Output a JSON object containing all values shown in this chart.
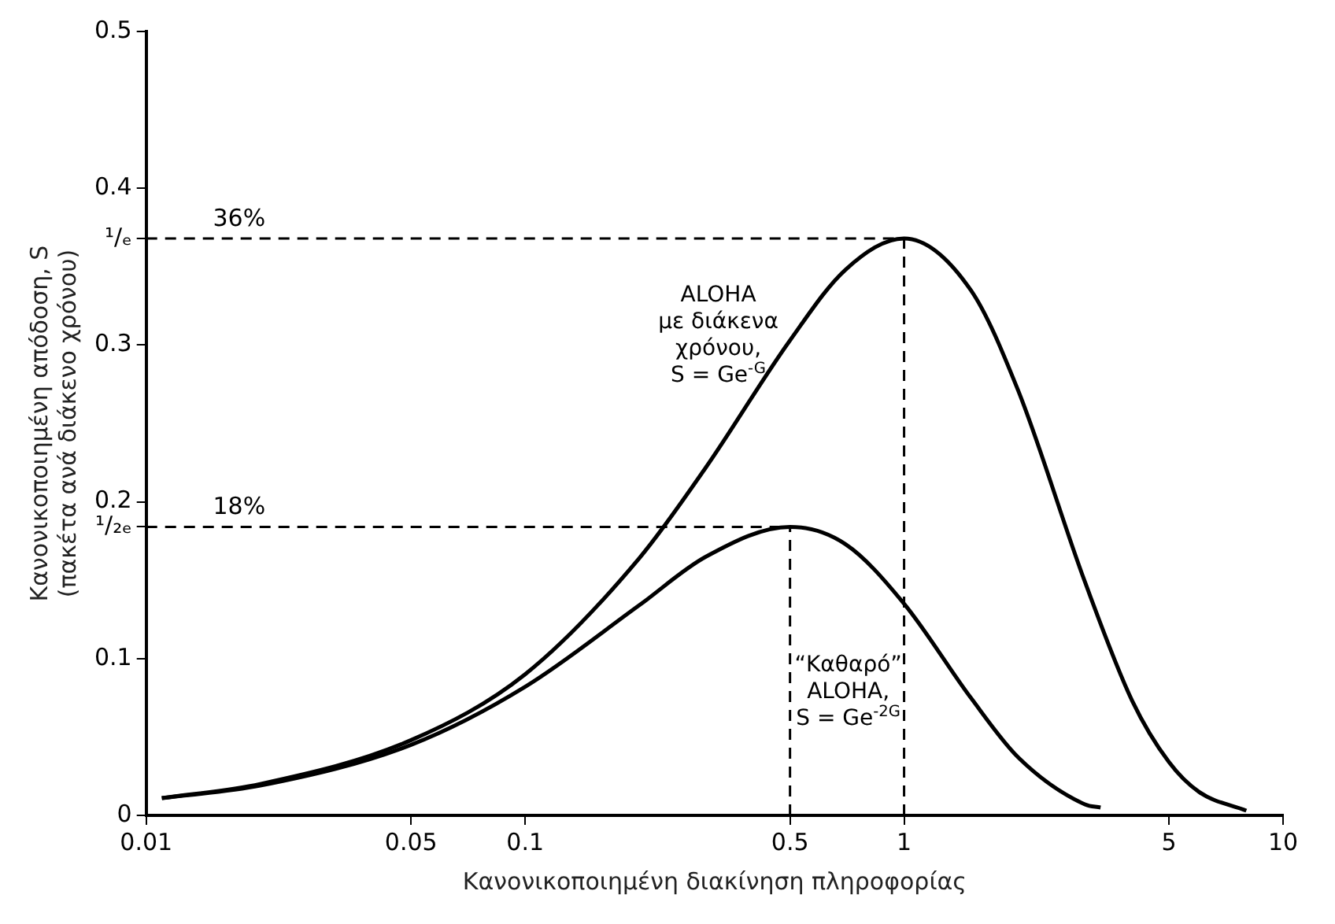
{
  "chart_data": {
    "type": "line",
    "xlabel": "Κανονικοποιημένη διακίνηση πληροφορίας",
    "ylabel": "Κανονικοποιημένη απόδοση, S\n(πακέτα ανά διάκενο χρόνου)",
    "series": [
      {
        "name": "ALOHA\nμε διάκενα\nχρόνου,\nS = Ge$^{-G}$",
        "color": "#000000",
        "x": [
          0.011,
          0.02,
          0.05,
          0.1,
          0.2,
          0.3,
          0.5,
          0.7,
          1,
          1.5,
          2,
          3,
          4,
          5,
          6,
          8
        ],
        "values": [
          0.011,
          0.02,
          0.048,
          0.09,
          0.164,
          0.222,
          0.303,
          0.348,
          0.368,
          0.335,
          0.271,
          0.149,
          0.073,
          0.034,
          0.015,
          0.003
        ]
      },
      {
        "name": "“Καθαρό”\nALOHA,\nS = Ge$^{-2G}$",
        "color": "#000000",
        "x": [
          0.011,
          0.02,
          0.05,
          0.1,
          0.2,
          0.3,
          0.5,
          0.7,
          1,
          1.5,
          2,
          3,
          3.3
        ],
        "values": [
          0.011,
          0.019,
          0.045,
          0.082,
          0.134,
          0.165,
          0.184,
          0.173,
          0.135,
          0.075,
          0.037,
          0.007,
          0.005
        ]
      }
    ],
    "log": "x",
    "xlim": [
      0.01,
      10
    ],
    "xticks": [
      0.01,
      0.05,
      0.1,
      0.5,
      1,
      5,
      10
    ],
    "ylim": [
      0,
      0.5
    ],
    "yticks": [
      0,
      0.1,
      0.2,
      {
        "value": 0.184,
        "label": "¹/₂ₑ"
      },
      0.3,
      {
        "value": 0.368,
        "label": "¹/ₑ"
      },
      0.4,
      0.5
    ],
    "ref_lines": [
      {
        "axis": "y",
        "value": 0.368,
        "line_style": "dashed"
      },
      {
        "axis": "x",
        "value": 1,
        "line_style": "dashed"
      },
      {
        "axis": "y",
        "value": 0.184,
        "line_style": "dashed"
      },
      {
        "axis": "x",
        "value": 0.5,
        "line_style": "dashed"
      }
    ],
    "annotations": [
      {
        "text": "36%",
        "x": 0.015,
        "y": 0.368
      },
      {
        "text": "18%",
        "x": 0.015,
        "y": 0.184
      }
    ],
    "grid": false,
    "legend": false,
    "marker": "none",
    "line_style": "solid"
  }
}
